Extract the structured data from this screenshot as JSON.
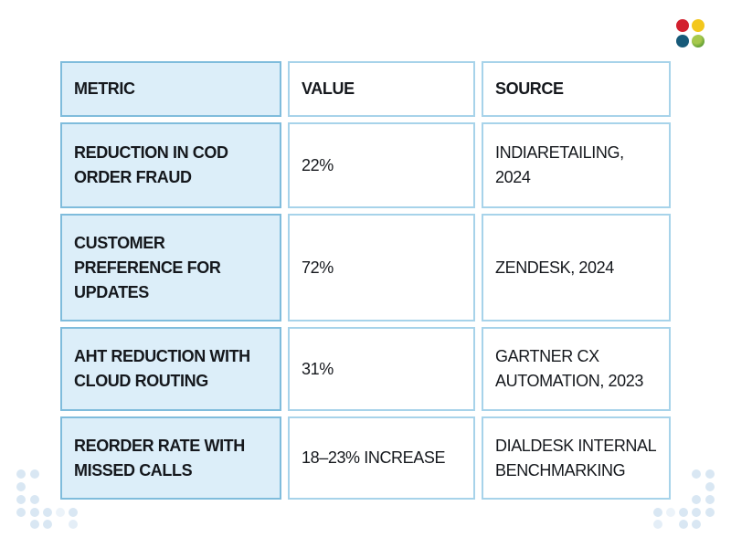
{
  "table": {
    "headers": [
      "METRIC",
      "VALUE",
      "SOURCE"
    ],
    "rows": [
      {
        "metric": "REDUCTION IN COD ORDER FRAUD",
        "value": "22%",
        "source": "INDIARETAILING, 2024"
      },
      {
        "metric": "CUSTOMER PREFERENCE FOR UPDATES",
        "value": "72%",
        "source": "ZENDESK, 2024"
      },
      {
        "metric": "AHT REDUCTION WITH CLOUD ROUTING",
        "value": "31%",
        "source": "GARTNER CX AUTOMATION, 2023"
      },
      {
        "metric": "REORDER RATE WITH MISSED CALLS",
        "value": "18–23% INCREASE",
        "source": "DIALDESK INTERNAL BENCHMARKING"
      }
    ]
  },
  "logo": {
    "name": "four-dots-logo",
    "colors": {
      "top_left": "#d2202e",
      "top_right": "#f3c71c",
      "bottom_left": "#175a79",
      "bottom_right_light": "#a6c84c",
      "bottom_right_dark": "#5d9c33"
    }
  },
  "colors": {
    "metric_cell_bg": "#dceef9",
    "metric_cell_border": "#7fbcdc",
    "plain_cell_border": "#a7d3ea",
    "cell_text": "#15181d",
    "decor_dot": "#d9e7f3",
    "page_background": "#ffffff"
  }
}
